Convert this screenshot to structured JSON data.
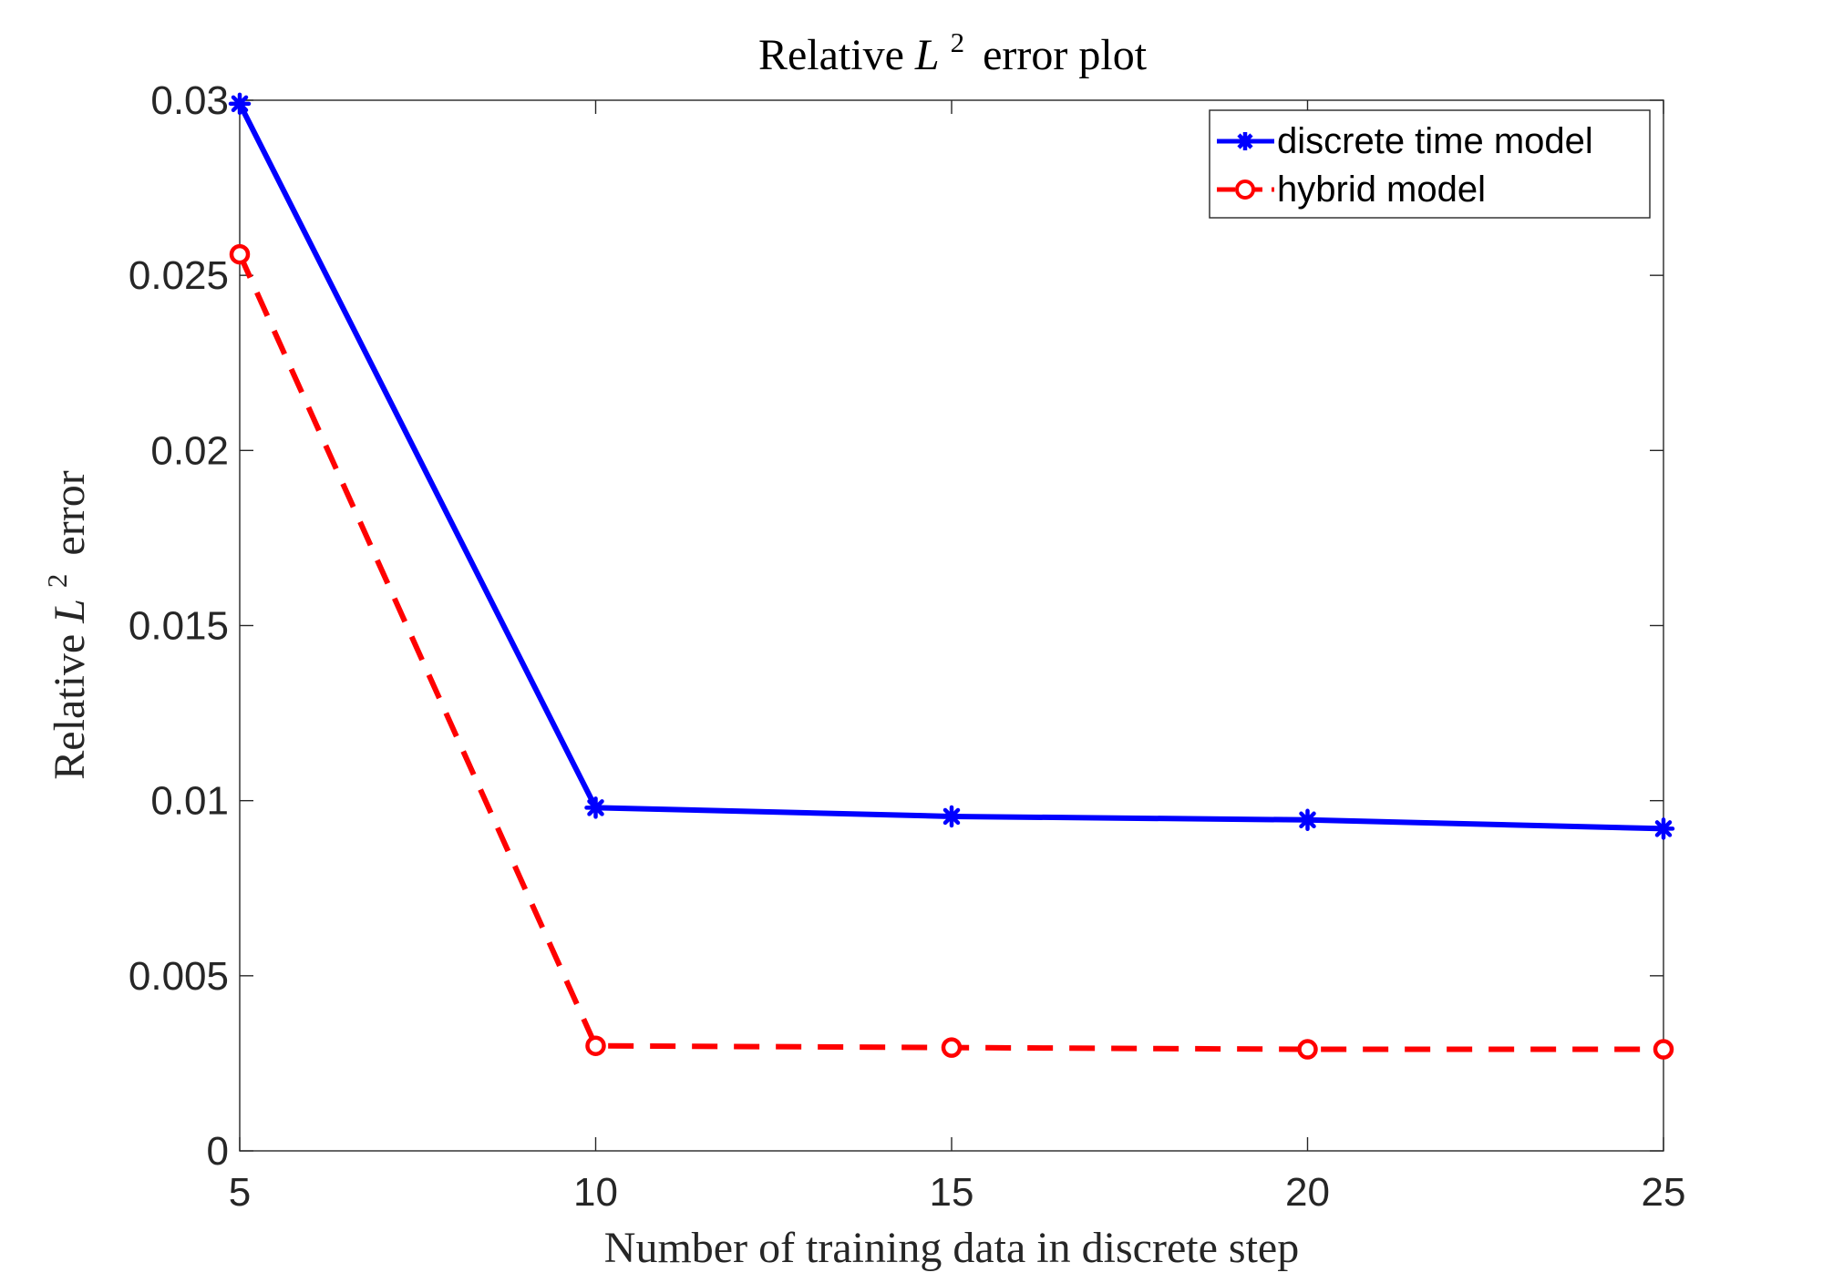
{
  "chart_data": {
    "type": "line",
    "title": {
      "prefix": "Relative",
      "symbol": "L",
      "superscript": "2",
      "suffix": "error plot"
    },
    "xlabel": "Number of training data in discrete step",
    "ylabel": {
      "prefix": "Relative",
      "symbol": "L",
      "superscript": "2",
      "suffix": "error"
    },
    "x": [
      5,
      10,
      15,
      20,
      25
    ],
    "xlim": [
      5,
      25
    ],
    "ylim": [
      0,
      0.03
    ],
    "xticks": [
      5,
      10,
      15,
      20,
      25
    ],
    "xtick_labels": [
      "5",
      "10",
      "15",
      "20",
      "25"
    ],
    "yticks": [
      0,
      0.005,
      0.01,
      0.015,
      0.02,
      0.025,
      0.03
    ],
    "ytick_labels": [
      "0",
      "0.005",
      "0.01",
      "0.015",
      "0.02",
      "0.025",
      "0.03"
    ],
    "grid": false,
    "legend_position": "top-right",
    "series": [
      {
        "name": "discrete time model",
        "values": [
          0.0299,
          0.0098,
          0.00955,
          0.00945,
          0.0092
        ],
        "color": "#0000ff",
        "line_style": "solid",
        "marker": "asterisk"
      },
      {
        "name": "hybrid model",
        "values": [
          0.0256,
          0.003,
          0.00295,
          0.0029,
          0.0029
        ],
        "color": "#ff0000",
        "line_style": "dashed",
        "marker": "circle"
      }
    ]
  }
}
